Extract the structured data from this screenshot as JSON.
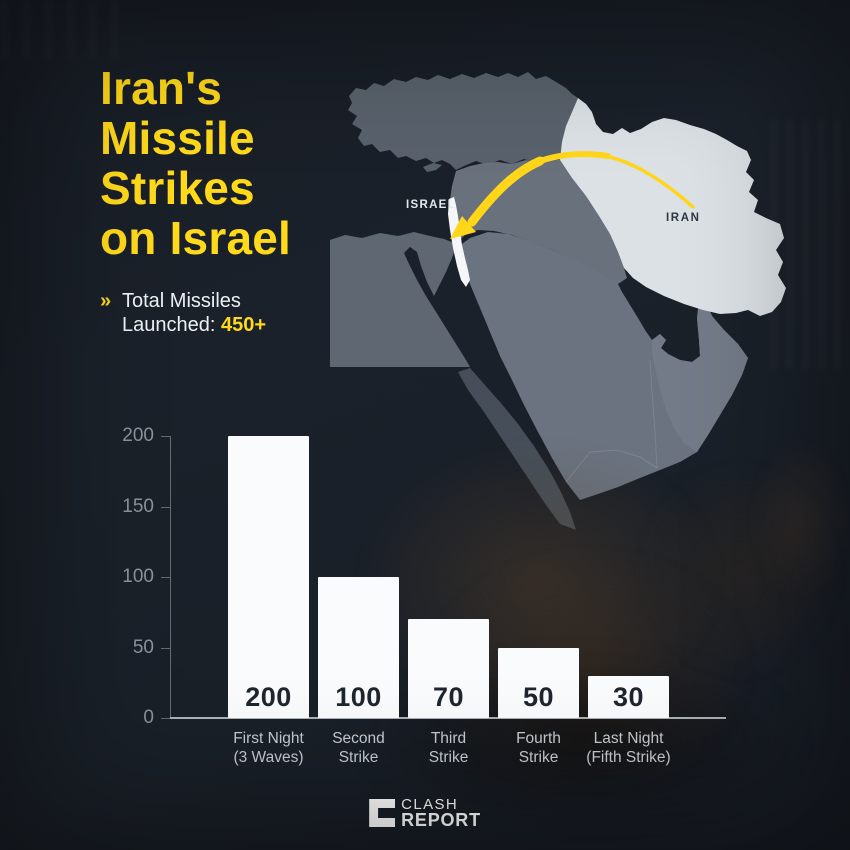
{
  "title": {
    "lines": [
      "Iran's",
      "Missile",
      "Strikes",
      "on Israel"
    ]
  },
  "subtitle": {
    "chevron": "»",
    "line1": "Total Missiles",
    "line2_label": "Launched:",
    "line2_value": "450+"
  },
  "map": {
    "labels": {
      "israel": "ISRAEL",
      "iran": "IRAN"
    },
    "highlighted_countries": [
      "Iran",
      "Israel"
    ],
    "arrow": "missile trajectory from Iran to Israel"
  },
  "chart_data": {
    "type": "bar",
    "categories": [
      [
        "First Night",
        "(3 Waves)"
      ],
      [
        "Second",
        "Strike"
      ],
      [
        "Third",
        "Strike"
      ],
      [
        "Fourth",
        "Strike"
      ],
      [
        "Last Night",
        "(Fifth Strike)"
      ]
    ],
    "values": [
      200,
      100,
      70,
      50,
      30
    ],
    "bar_labels": [
      "200",
      "100",
      "70",
      "50",
      "30"
    ],
    "yticks": [
      0,
      50,
      100,
      150,
      200
    ],
    "ylim": [
      0,
      200
    ],
    "title": "",
    "xlabel": "",
    "ylabel": "",
    "grid": false,
    "legend": false
  },
  "logo": {
    "line1": "CLASH",
    "line2": "REPORT"
  },
  "colors": {
    "accent": "#ffd91a",
    "arrow": "#ffd619",
    "background": "#1b2129",
    "bar_fill": "#fafbfc",
    "bar_value_text": "#20262d",
    "axis_text": "#8b939b",
    "category_text": "#c7ccd2",
    "subtitle_text": "#eef1f4",
    "iran_fill": "#dce1e6",
    "israel_fill": "#f4f6f8",
    "map_label_israel": "#e3e8ec",
    "map_label_iran": "#2e3740",
    "logo_text": "#ffffff"
  }
}
